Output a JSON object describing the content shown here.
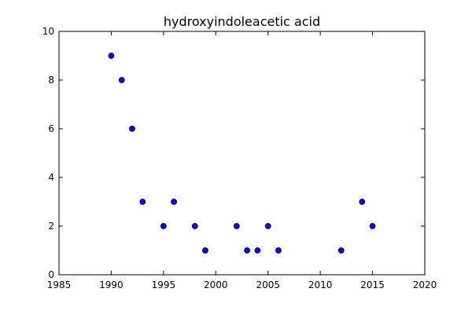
{
  "colors": {
    "marker_fill": "#0000ff",
    "marker_stroke": "#000000",
    "axis": "#000000",
    "background": "#ffffff"
  },
  "chart_data": {
    "type": "scatter",
    "title": "hydroxyindoleacetic acid",
    "xlabel": "",
    "ylabel": "",
    "xlim": [
      1985,
      2020
    ],
    "ylim": [
      0,
      10
    ],
    "xticks": [
      1985,
      1990,
      1995,
      2000,
      2005,
      2010,
      2015,
      2020
    ],
    "yticks": [
      0,
      2,
      4,
      6,
      8,
      10
    ],
    "grid": false,
    "legend": "none",
    "series": [
      {
        "x": [
          1990,
          1991,
          1992,
          1993,
          1995,
          1996,
          1998,
          1999,
          2002,
          2003,
          2004,
          2005,
          2006,
          2012,
          2014,
          2015
        ],
        "y": [
          9,
          8,
          6,
          3,
          2,
          3,
          2,
          1,
          2,
          1,
          1,
          2,
          1,
          1,
          3,
          2
        ]
      }
    ]
  }
}
